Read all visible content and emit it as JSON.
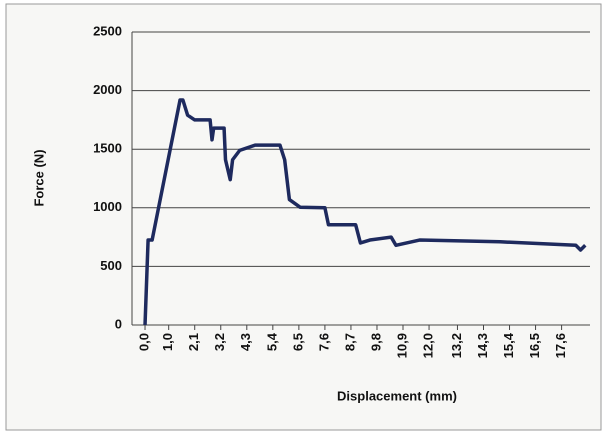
{
  "chart_data": {
    "type": "line",
    "x_label": "Displacement (mm)",
    "y_label": "Force (N)",
    "xlim": [
      -0.55,
      18.8
    ],
    "ylim": [
      0,
      2500
    ],
    "xticks": [
      {
        "value": 0.0,
        "label": "0,0"
      },
      {
        "value": 1.0,
        "label": "1,0"
      },
      {
        "value": 2.1,
        "label": "2,1"
      },
      {
        "value": 3.2,
        "label": "3,2"
      },
      {
        "value": 4.3,
        "label": "4,3"
      },
      {
        "value": 5.4,
        "label": "5,4"
      },
      {
        "value": 6.5,
        "label": "6,5"
      },
      {
        "value": 7.6,
        "label": "7,6"
      },
      {
        "value": 8.7,
        "label": "8,7"
      },
      {
        "value": 9.8,
        "label": "9,8"
      },
      {
        "value": 10.9,
        "label": "10,9"
      },
      {
        "value": 12.0,
        "label": "12,0"
      },
      {
        "value": 13.2,
        "label": "13,2"
      },
      {
        "value": 14.3,
        "label": "14,3"
      },
      {
        "value": 15.4,
        "label": "15,4"
      },
      {
        "value": 16.5,
        "label": "16,5"
      },
      {
        "value": 17.6,
        "label": "17,6"
      }
    ],
    "yticks": [
      0,
      500,
      1000,
      1500,
      2000,
      2500
    ],
    "grid": true,
    "x": [
      0.0,
      0.13,
      0.3,
      1.48,
      1.6,
      1.8,
      2.1,
      2.75,
      2.83,
      2.9,
      3.34,
      3.4,
      3.6,
      3.7,
      4.0,
      4.65,
      5.7,
      5.9,
      6.1,
      6.55,
      7.6,
      7.75,
      8.9,
      9.1,
      9.5,
      10.4,
      10.6,
      11.6,
      15.0,
      18.2,
      18.4,
      18.6
    ],
    "series": [
      {
        "name": "Force",
        "color": "#1e2a5e",
        "values": [
          0,
          725,
          725,
          1920,
          1920,
          1790,
          1750,
          1750,
          1580,
          1680,
          1680,
          1410,
          1240,
          1410,
          1490,
          1535,
          1535,
          1410,
          1070,
          1005,
          1000,
          855,
          855,
          700,
          725,
          750,
          680,
          725,
          710,
          680,
          640,
          680
        ]
      }
    ]
  }
}
